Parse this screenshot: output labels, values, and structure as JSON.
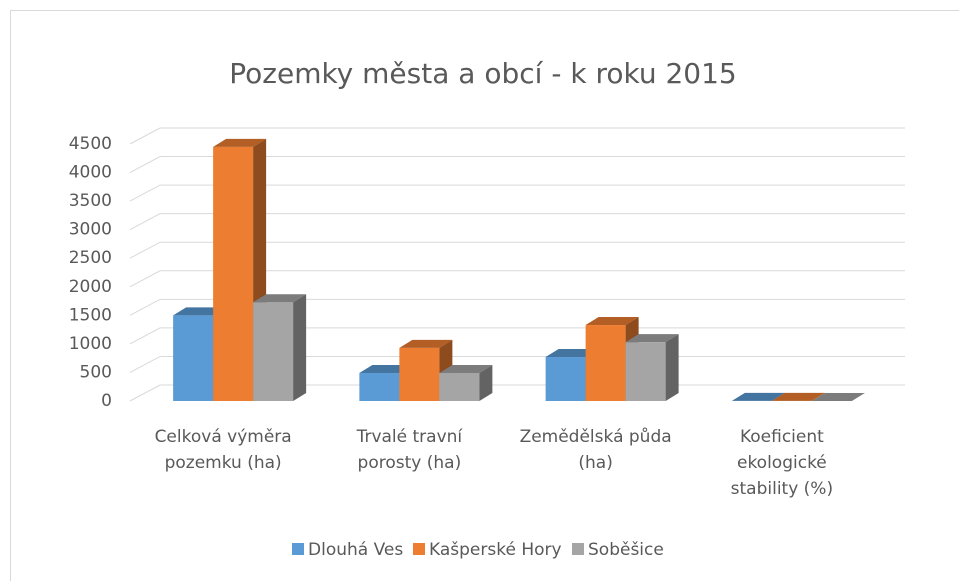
{
  "chart_data": {
    "type": "bar3d",
    "title": "Pozemky města a obcí - k roku 2015",
    "categories": [
      "Celková výměra pozemku (ha)",
      "Trvalé travní porosty (ha)",
      "Zemědělská půda (ha)",
      "Koeficient ekologické stability (%)"
    ],
    "series": [
      {
        "name": "Dlouhá Ves",
        "color": "#5b9bd5",
        "values": [
          1500,
          490,
          770,
          1.5
        ]
      },
      {
        "name": "Kašperské Hory",
        "color": "#ed7d31",
        "values": [
          4450,
          930,
          1330,
          2.5
        ]
      },
      {
        "name": "Soběšice",
        "color": "#a5a5a5",
        "values": [
          1730,
          490,
          1030,
          1
        ]
      }
    ],
    "ylim": [
      0,
      4500
    ],
    "yticks": [
      0,
      500,
      1000,
      1500,
      2000,
      2500,
      3000,
      3500,
      4000,
      4500
    ],
    "grid": true,
    "legend": "bottom"
  }
}
